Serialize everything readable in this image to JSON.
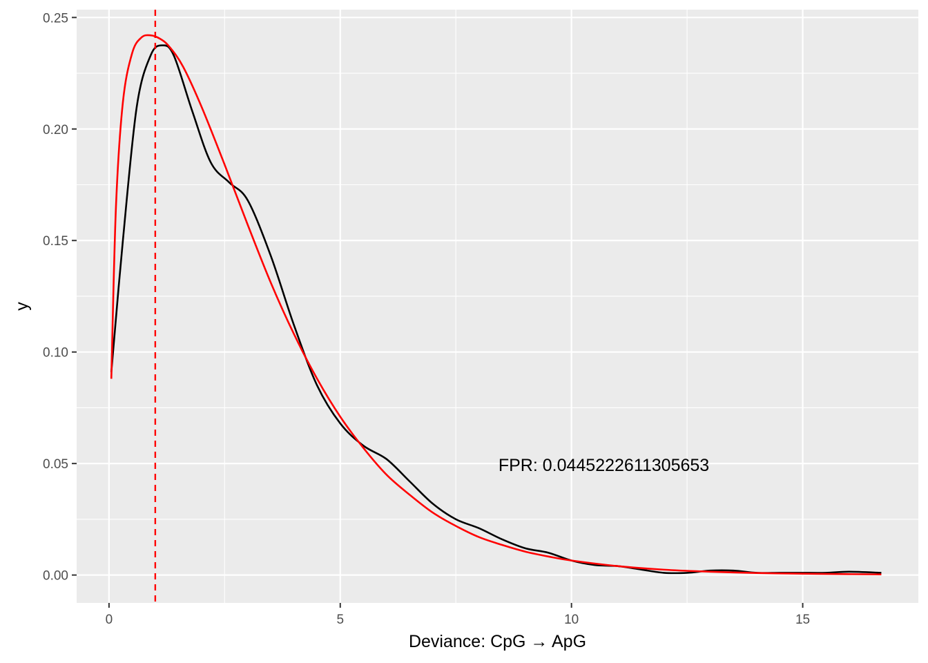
{
  "chart_data": {
    "type": "line",
    "xlabel": "Deviance: CpG → ApG",
    "ylabel": "y",
    "xlim": [
      -0.7,
      17.5
    ],
    "ylim": [
      -0.0125,
      0.2535
    ],
    "x_ticks": [
      0,
      5,
      10,
      15
    ],
    "x_tick_labels": [
      "0",
      "5",
      "10",
      "15"
    ],
    "y_ticks": [
      0.0,
      0.05,
      0.1,
      0.15,
      0.2,
      0.25
    ],
    "y_tick_labels": [
      "0.00",
      "0.05",
      "0.10",
      "0.15",
      "0.20",
      "0.25"
    ],
    "grid": true,
    "background": "#EBEBEB",
    "series": [
      {
        "color": "#000000",
        "style": "solid",
        "x": [
          0.05,
          0.3,
          0.6,
          0.9,
          1.15,
          1.4,
          1.8,
          2.2,
          2.6,
          3.0,
          3.5,
          4.0,
          4.5,
          5.0,
          5.5,
          6.0,
          6.5,
          7.0,
          7.5,
          8.0,
          8.5,
          9.0,
          9.5,
          10.0,
          10.5,
          11.0,
          11.5,
          12.0,
          12.5,
          13.0,
          13.5,
          14.0,
          14.5,
          15.0,
          15.5,
          16.0,
          16.7
        ],
        "y": [
          0.091,
          0.15,
          0.21,
          0.233,
          0.2375,
          0.233,
          0.208,
          0.185,
          0.176,
          0.168,
          0.143,
          0.112,
          0.085,
          0.068,
          0.058,
          0.052,
          0.042,
          0.032,
          0.025,
          0.021,
          0.016,
          0.012,
          0.01,
          0.0065,
          0.0045,
          0.004,
          0.0025,
          0.001,
          0.001,
          0.002,
          0.002,
          0.001,
          0.001,
          0.001,
          0.001,
          0.0015,
          0.001
        ]
      },
      {
        "color": "#FF0000",
        "style": "solid",
        "x": [
          0.05,
          0.15,
          0.3,
          0.5,
          0.7,
          0.9,
          1.1,
          1.3,
          1.6,
          2.0,
          2.5,
          3.0,
          3.5,
          4.0,
          4.5,
          5.0,
          5.5,
          6.0,
          6.5,
          7.0,
          7.5,
          8.0,
          8.5,
          9.0,
          9.5,
          10.0,
          11.0,
          12.0,
          13.0,
          14.0,
          15.0,
          16.0,
          16.7
        ],
        "y": [
          0.088,
          0.165,
          0.212,
          0.234,
          0.241,
          0.242,
          0.2405,
          0.237,
          0.228,
          0.21,
          0.184,
          0.157,
          0.131,
          0.108,
          0.088,
          0.071,
          0.057,
          0.045,
          0.036,
          0.028,
          0.022,
          0.017,
          0.0135,
          0.0105,
          0.0083,
          0.0065,
          0.004,
          0.0024,
          0.0015,
          0.0009,
          0.0006,
          0.0004,
          0.0003
        ]
      }
    ],
    "vline": {
      "x": 1.0,
      "color": "#FF0000",
      "style": "dashed"
    },
    "annotations": [
      {
        "text": "FPR: 0.0445222611305653",
        "x": 10.7,
        "y": 0.0495
      }
    ]
  }
}
